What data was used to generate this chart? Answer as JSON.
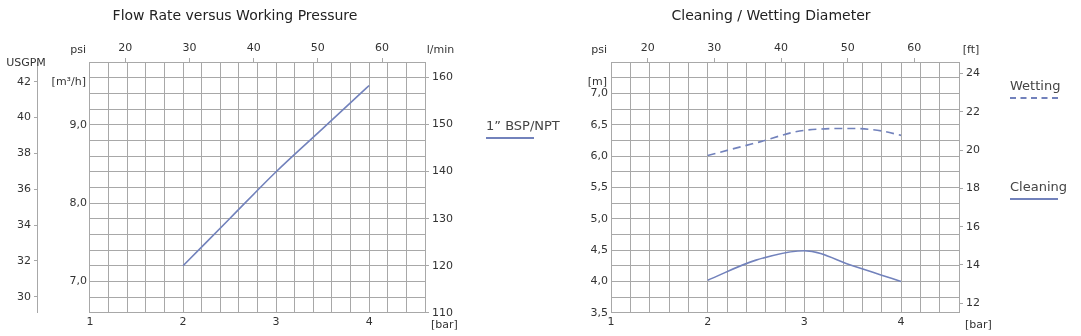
{
  "chart_data": [
    {
      "type": "line",
      "title": "Flow Rate versus Working Pressure",
      "xlabel": "[bar]",
      "x2label": "psi",
      "ylabel": "[m³/h]",
      "y2label": "l/min",
      "y3label": "USGPM",
      "x": [
        2,
        2.5,
        3,
        3.5,
        4
      ],
      "series": [
        {
          "name": "1” BSP/NPT",
          "color": "#7282bc",
          "values": [
            7.2,
            7.8,
            8.4,
            8.95,
            9.5
          ]
        }
      ],
      "xlim": [
        1,
        4.6
      ],
      "xticks": [
        1,
        {
          "value": 1.2,
          "label": null
        },
        {
          "value": 1.4,
          "label": null
        },
        {
          "value": 1.6,
          "label": null
        },
        {
          "value": 1.8,
          "label": null
        },
        2,
        {
          "value": 2.2,
          "label": null
        },
        {
          "value": 2.4,
          "label": null
        },
        {
          "value": 2.6,
          "label": null
        },
        {
          "value": 2.8,
          "label": null
        },
        3,
        {
          "value": 3.2,
          "label": null
        },
        {
          "value": 3.4,
          "label": null
        },
        {
          "value": 3.6,
          "label": null
        },
        {
          "value": 3.8,
          "label": null
        },
        4,
        {
          "value": 4.2,
          "label": null
        },
        {
          "value": 4.4,
          "label": null
        }
      ],
      "x2lim": [
        14.5,
        66.7
      ],
      "x2ticks": [
        20,
        30,
        40,
        50,
        60
      ],
      "ylim": [
        6.6,
        9.8
      ],
      "yticks": [
        {
          "value": 6.6,
          "label": null
        },
        {
          "value": 6.8,
          "label": null
        },
        {
          "value": 7,
          "label": "7,0"
        },
        {
          "value": 7.2,
          "label": null
        },
        {
          "value": 7.4,
          "label": null
        },
        {
          "value": 7.6,
          "label": null
        },
        {
          "value": 7.8,
          "label": null
        },
        {
          "value": 8,
          "label": "8,0"
        },
        {
          "value": 8.2,
          "label": null
        },
        {
          "value": 8.4,
          "label": null
        },
        {
          "value": 8.6,
          "label": null
        },
        {
          "value": 8.8,
          "label": null
        },
        {
          "value": 9,
          "label": "9,0"
        },
        {
          "value": 9.2,
          "label": null
        },
        {
          "value": 9.4,
          "label": null
        },
        {
          "value": 9.6,
          "label": null
        }
      ],
      "y2lim": [
        110,
        163.3
      ],
      "y2ticks": [
        110,
        120,
        130,
        140,
        150,
        160
      ],
      "y3lim": [
        29.1,
        43.1
      ],
      "y3ticks": [
        30,
        32,
        34,
        36,
        38,
        40,
        42
      ],
      "grid": true,
      "legend": "right"
    },
    {
      "type": "line",
      "title": "Cleaning / Wetting Diameter",
      "xlabel": "[bar]",
      "x2label": "psi",
      "ylabel": "[m]",
      "y2label": "[ft]",
      "x": [
        2,
        2.5,
        3,
        3.5,
        3.8,
        4
      ],
      "series": [
        {
          "name": "Wetting",
          "color": "#7282bc",
          "line_style": "dashed",
          "values": [
            6.01,
            6.21,
            6.41,
            6.44,
            6.4,
            6.33
          ]
        },
        {
          "name": "Cleaning",
          "color": "#7282bc",
          "values": [
            4.02,
            4.34,
            4.49,
            4.25,
            4.1,
            4.0
          ]
        }
      ],
      "xlim": [
        1,
        4.6
      ],
      "xticks": [
        1,
        {
          "value": 1.2,
          "label": null
        },
        {
          "value": 1.4,
          "label": null
        },
        {
          "value": 1.6,
          "label": null
        },
        {
          "value": 1.8,
          "label": null
        },
        2,
        {
          "value": 2.2,
          "label": null
        },
        {
          "value": 2.4,
          "label": null
        },
        {
          "value": 2.6,
          "label": null
        },
        {
          "value": 2.8,
          "label": null
        },
        3,
        {
          "value": 3.2,
          "label": null
        },
        {
          "value": 3.4,
          "label": null
        },
        {
          "value": 3.6,
          "label": null
        },
        {
          "value": 3.8,
          "label": null
        },
        4,
        {
          "value": 4.2,
          "label": null
        },
        {
          "value": 4.4,
          "label": null
        }
      ],
      "x2lim": [
        14.5,
        66.7
      ],
      "x2ticks": [
        20,
        30,
        40,
        50,
        60
      ],
      "ylim": [
        3.5,
        7.5
      ],
      "yticks": [
        {
          "value": 3.5,
          "label": "3,5"
        },
        {
          "value": 3.75,
          "label": null
        },
        {
          "value": 4,
          "label": "4,0"
        },
        {
          "value": 4.25,
          "label": null
        },
        {
          "value": 4.5,
          "label": "4,5"
        },
        {
          "value": 4.75,
          "label": null
        },
        {
          "value": 5,
          "label": "5,0"
        },
        {
          "value": 5.25,
          "label": null
        },
        {
          "value": 5.5,
          "label": "5,5"
        },
        {
          "value": 5.75,
          "label": null
        },
        {
          "value": 6,
          "label": "6,0"
        },
        {
          "value": 6.25,
          "label": null
        },
        {
          "value": 6.5,
          "label": "6,5"
        },
        {
          "value": 6.75,
          "label": null
        },
        {
          "value": 7,
          "label": "7,0"
        },
        {
          "value": 7.25,
          "label": null
        }
      ],
      "y2lim": [
        11.5,
        24.6
      ],
      "y2ticks": [
        12,
        14,
        16,
        18,
        20,
        22,
        24
      ],
      "grid": true,
      "legend": "right"
    }
  ]
}
